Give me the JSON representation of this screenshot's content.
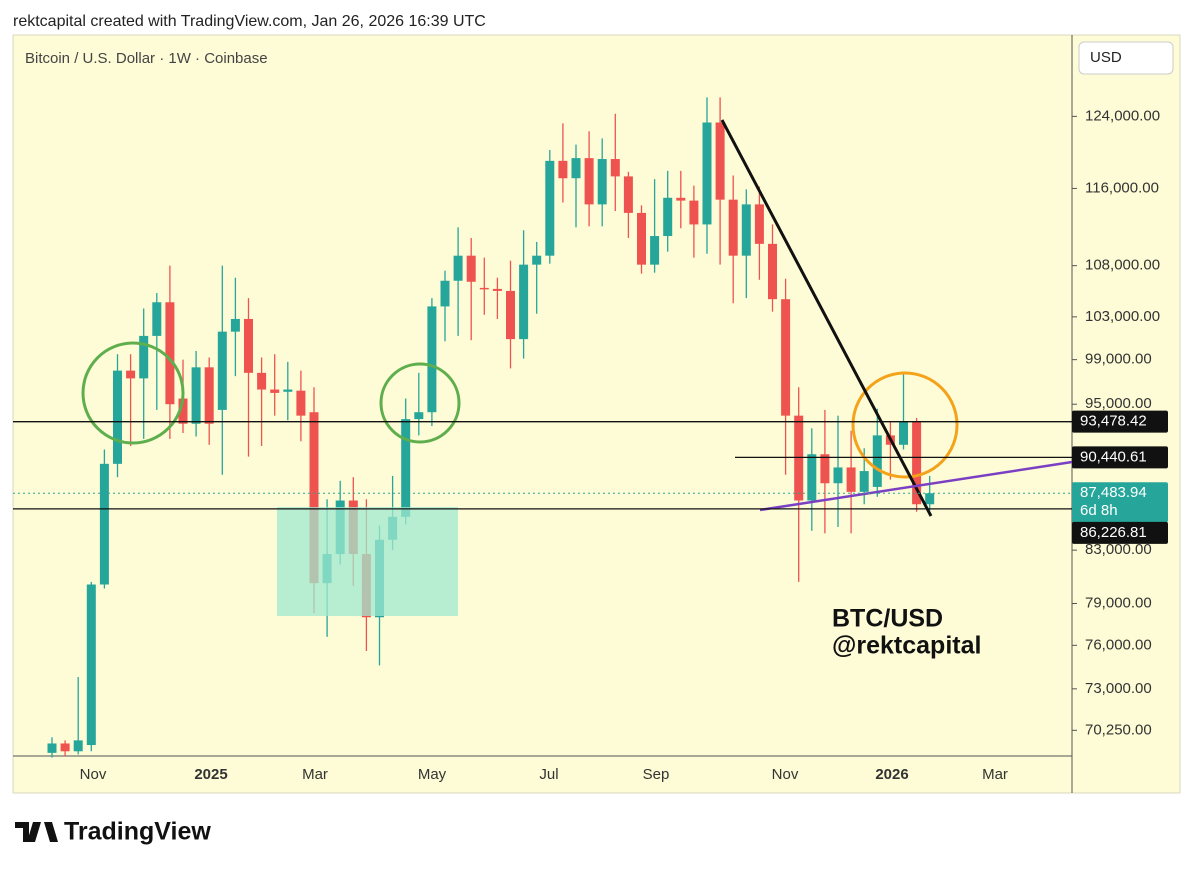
{
  "header": "rektcapital created with TradingView.com, Jan 26, 2026 16:39 UTC",
  "logo": "TradingView",
  "chart_data": {
    "type": "candlestick",
    "title": "Bitcoin / U.S. Dollar · 1W · Coinbase",
    "currency": "USD",
    "annotations": [
      "BTC/USD",
      "@rektcapital"
    ],
    "log_scale": true,
    "up_color": "#26a69a",
    "down_color": "#ef5350",
    "ylim": [
      68600,
      133700
    ],
    "yticks": [
      {
        "value": 124000,
        "label": "124,000.00"
      },
      {
        "value": 116000,
        "label": "116,000.00"
      },
      {
        "value": 108000,
        "label": "108,000.00"
      },
      {
        "value": 103000,
        "label": "103,000.00"
      },
      {
        "value": 99000,
        "label": "99,000.00"
      },
      {
        "value": 95000,
        "label": "95,000.00"
      },
      {
        "value": 83000,
        "label": "83,000.00"
      },
      {
        "value": 79000,
        "label": "79,000.00"
      },
      {
        "value": 76000,
        "label": "76,000.00"
      },
      {
        "value": 73000,
        "label": "73,000.00"
      },
      {
        "value": 70250,
        "label": "70,250.00"
      }
    ],
    "xlabels": [
      "Nov",
      "2025",
      "Mar",
      "May",
      "Jul",
      "Sep",
      "Nov",
      "2026",
      "Mar"
    ],
    "levels": [
      {
        "value": 93478.42,
        "label": "93,478.42"
      },
      {
        "value": 90440.61,
        "label": "90,440.61"
      },
      {
        "value": 87483.94,
        "label": "87,483.94",
        "countdown": "6d 8h"
      },
      {
        "value": 86226.81,
        "label": "86,226.81"
      }
    ],
    "open": [
      68800,
      69400,
      68900,
      69300,
      80400,
      89900,
      98000,
      97300,
      101200,
      104400,
      95500,
      93300,
      98300,
      94500,
      101600,
      102800,
      97800,
      96300,
      96100,
      96200,
      94300,
      80500,
      82700,
      86900,
      82700,
      78000,
      83800,
      85600,
      93700,
      94300,
      104000,
      106500,
      109000,
      105800,
      105700,
      105500,
      100900,
      108100,
      109000,
      119000,
      117100,
      119300,
      114300,
      119200,
      117300,
      113400,
      108100,
      111000,
      115000,
      114700,
      112200,
      123300,
      114800,
      109000,
      114300,
      110200,
      104700,
      94000,
      86900,
      90700,
      88300,
      89600,
      87600,
      88000,
      92300,
      91500,
      93500,
      86600
    ],
    "high": [
      69800,
      69600,
      73800,
      80600,
      91100,
      99500,
      99500,
      103800,
      105300,
      108000,
      99000,
      99800,
      99200,
      108000,
      106800,
      104800,
      99200,
      99500,
      98800,
      98000,
      96500,
      87000,
      88500,
      88800,
      87000,
      84900,
      88900,
      95500,
      97800,
      104800,
      107500,
      111900,
      110800,
      108800,
      106800,
      108500,
      111600,
      110400,
      120200,
      123200,
      120800,
      122300,
      121500,
      124300,
      117800,
      114200,
      117000,
      117900,
      117900,
      116300,
      126200,
      126200,
      117400,
      115900,
      116200,
      112200,
      106700,
      96500,
      92900,
      94500,
      94000,
      92700,
      91200,
      94600,
      93500,
      97900,
      93800,
      88900
    ],
    "low": [
      68500,
      68600,
      68700,
      68900,
      80100,
      88800,
      91400,
      92000,
      94500,
      92000,
      92500,
      92200,
      91500,
      89000,
      97500,
      90500,
      91400,
      94000,
      93600,
      91800,
      78300,
      76600,
      81900,
      80300,
      75600,
      74600,
      83000,
      85000,
      92300,
      93100,
      100700,
      101200,
      100800,
      103200,
      102800,
      98200,
      99100,
      103300,
      108200,
      114500,
      111900,
      112000,
      112000,
      113600,
      110800,
      107200,
      107300,
      109400,
      111800,
      108800,
      109200,
      108100,
      104300,
      104800,
      106600,
      103500,
      89000,
      80600,
      84500,
      84300,
      84800,
      84300,
      86600,
      87200,
      88600,
      91100,
      86000,
      86100
    ],
    "close": [
      69400,
      68900,
      69600,
      80400,
      89900,
      98000,
      97300,
      101200,
      104400,
      95000,
      93300,
      98300,
      93300,
      101600,
      102800,
      97800,
      96300,
      96000,
      96300,
      94000,
      80500,
      82700,
      86900,
      82700,
      78000,
      83800,
      85600,
      93700,
      94300,
      104000,
      106500,
      109000,
      106400,
      105700,
      105500,
      100900,
      108100,
      109000,
      119000,
      117100,
      119300,
      114300,
      119200,
      117300,
      113400,
      108100,
      111000,
      115000,
      114700,
      112200,
      123300,
      114800,
      109000,
      114300,
      110200,
      104700,
      94000,
      86900,
      90700,
      88300,
      89600,
      87600,
      89300,
      92300,
      91500,
      93500,
      86600,
      87483.94
    ]
  }
}
